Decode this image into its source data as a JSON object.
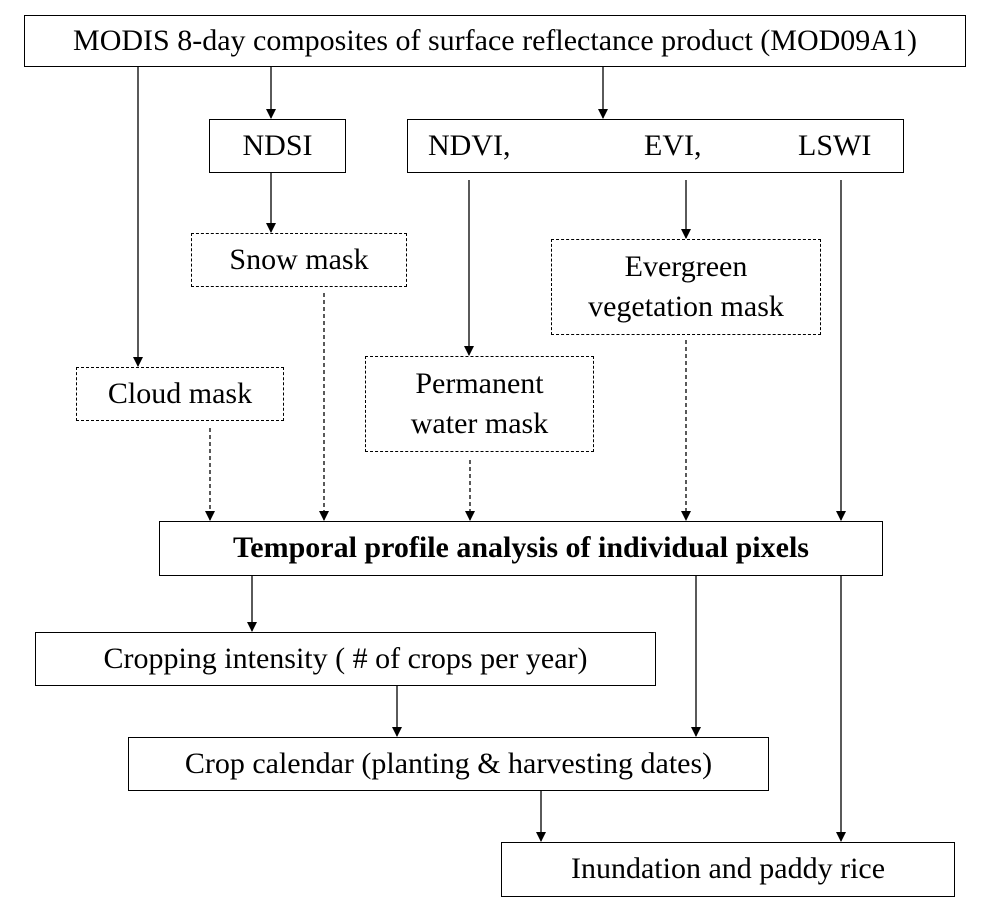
{
  "boxes": {
    "modis": "MODIS 8-day composites of surface reflectance product (MOD09A1)",
    "ndsi": "NDSI",
    "indices": {
      "ndvi": "NDVI,",
      "evi": "EVI,",
      "lswi": "LSWI"
    },
    "snow_mask": "Snow mask",
    "evergreen_mask": "Evergreen vegetation mask",
    "cloud_mask": "Cloud mask",
    "permanent_water_mask": "Permanent water mask",
    "temporal_analysis": "Temporal profile analysis of individual pixels",
    "cropping_intensity": "Cropping intensity ( # of crops per year)",
    "crop_calendar": "Crop calendar (planting & harvesting dates)",
    "inundation": "Inundation and paddy rice"
  }
}
